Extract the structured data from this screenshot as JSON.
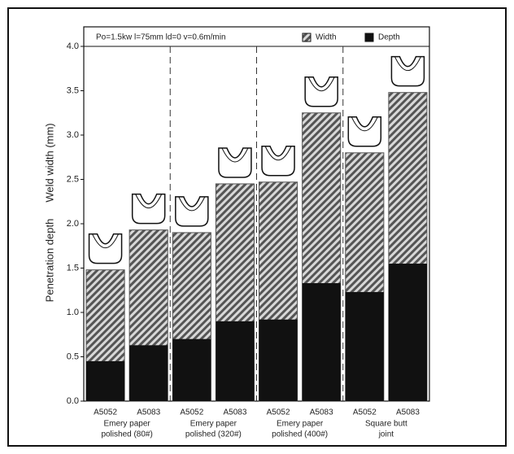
{
  "chart_data": {
    "type": "bar",
    "annotation": "Po=1.5kw  l=75mm  ld=0  v=0.6m/min",
    "y_labels": [
      "Penetration depth",
      "Weld width  (mm)"
    ],
    "categories": [
      "A5052",
      "A5083",
      "A5052",
      "A5083",
      "A5052",
      "A5083",
      "A5052",
      "A5083"
    ],
    "groups": [
      [
        "Emery paper",
        "polished (80#)"
      ],
      [
        "Emery paper",
        "polished (320#)"
      ],
      [
        "Emery paper",
        "polished (400#)"
      ],
      [
        "Square butt",
        "joint"
      ]
    ],
    "series": [
      {
        "name": "Width",
        "color": "#555555",
        "values": [
          1.48,
          1.93,
          1.9,
          2.45,
          2.47,
          3.25,
          2.8,
          3.48
        ]
      },
      {
        "name": "Depth",
        "color": "#111111",
        "values": [
          0.45,
          0.63,
          0.7,
          0.9,
          0.92,
          1.33,
          1.23,
          1.55
        ]
      }
    ],
    "ylim": [
      0,
      4
    ],
    "yticks": [
      {
        "value": 0,
        "label": "0.0"
      },
      0.5,
      {
        "value": 1,
        "label": "1.0"
      },
      1.5,
      {
        "value": 2,
        "label": "2.0"
      },
      2.5,
      {
        "value": 3,
        "label": "3.0"
      },
      3.5,
      {
        "value": 4,
        "label": "4.0"
      }
    ]
  }
}
